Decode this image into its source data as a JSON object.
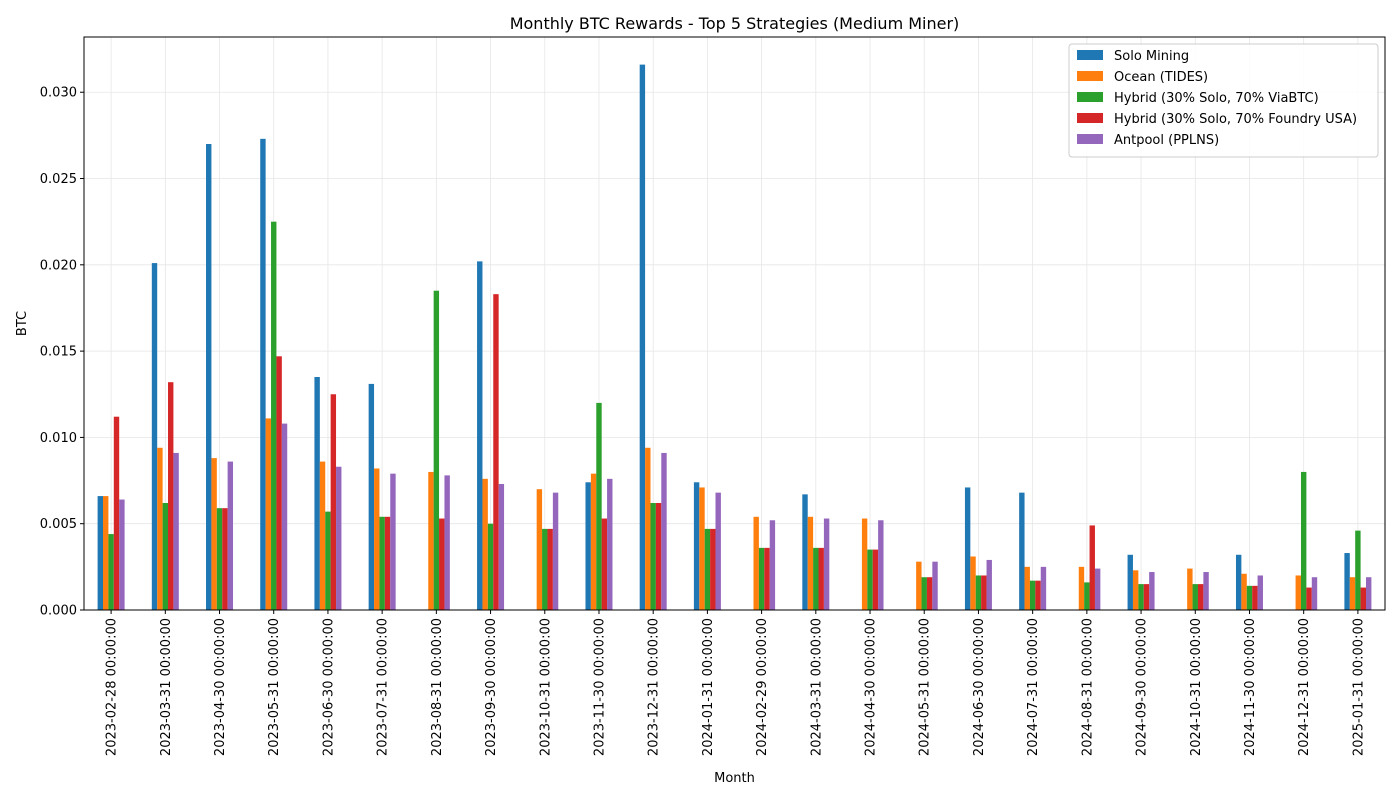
{
  "chart_data": {
    "type": "bar",
    "title": "Monthly BTC Rewards - Top 5 Strategies (Medium Miner)",
    "xlabel": "Month",
    "ylabel": "BTC",
    "ylim": [
      0,
      0.0332
    ],
    "yticks": [
      "0.000",
      "0.005",
      "0.010",
      "0.015",
      "0.020",
      "0.025",
      "0.030"
    ],
    "ytick_values": [
      0,
      0.005,
      0.01,
      0.015,
      0.02,
      0.025,
      0.03
    ],
    "grid": true,
    "legend_position": "top-right",
    "categories": [
      "2023-02-28 00:00:00",
      "2023-03-31 00:00:00",
      "2023-04-30 00:00:00",
      "2023-05-31 00:00:00",
      "2023-06-30 00:00:00",
      "2023-07-31 00:00:00",
      "2023-08-31 00:00:00",
      "2023-09-30 00:00:00",
      "2023-10-31 00:00:00",
      "2023-11-30 00:00:00",
      "2023-12-31 00:00:00",
      "2024-01-31 00:00:00",
      "2024-02-29 00:00:00",
      "2024-03-31 00:00:00",
      "2024-04-30 00:00:00",
      "2024-05-31 00:00:00",
      "2024-06-30 00:00:00",
      "2024-07-31 00:00:00",
      "2024-08-31 00:00:00",
      "2024-09-30 00:00:00",
      "2024-10-31 00:00:00",
      "2024-11-30 00:00:00",
      "2024-12-31 00:00:00",
      "2025-01-31 00:00:00"
    ],
    "series": [
      {
        "name": "Solo Mining",
        "color": "#1f77b4",
        "values": [
          0.0066,
          0.0201,
          0.027,
          0.0273,
          0.0135,
          0.0131,
          0,
          0.0202,
          0,
          0.0074,
          0.0316,
          0.0074,
          0,
          0.0067,
          0,
          0,
          0.0071,
          0.0068,
          0,
          0.0032,
          0,
          0.0032,
          0,
          0.0033
        ]
      },
      {
        "name": "Ocean (TIDES)",
        "color": "#ff7f0e",
        "values": [
          0.0066,
          0.0094,
          0.0088,
          0.0111,
          0.0086,
          0.0082,
          0.008,
          0.0076,
          0.007,
          0.0079,
          0.0094,
          0.0071,
          0.0054,
          0.0054,
          0.0053,
          0.0028,
          0.0031,
          0.0025,
          0.0025,
          0.0023,
          0.0024,
          0.0021,
          0.002,
          0.0019
        ]
      },
      {
        "name": "Hybrid (30% Solo, 70% ViaBTC)",
        "color": "#2ca02c",
        "values": [
          0.0044,
          0.0062,
          0.0059,
          0.0225,
          0.0057,
          0.0054,
          0.0185,
          0.005,
          0.0047,
          0.012,
          0.0062,
          0.0047,
          0.0036,
          0.0036,
          0.0035,
          0.0019,
          0.002,
          0.0017,
          0.0016,
          0.0015,
          0.0015,
          0.0014,
          0.008,
          0.0046
        ]
      },
      {
        "name": "Hybrid (30% Solo, 70% Foundry USA)",
        "color": "#d62728",
        "values": [
          0.0112,
          0.0132,
          0.0059,
          0.0147,
          0.0125,
          0.0054,
          0.0053,
          0.0183,
          0.0047,
          0.0053,
          0.0062,
          0.0047,
          0.0036,
          0.0036,
          0.0035,
          0.0019,
          0.002,
          0.0017,
          0.0049,
          0.0015,
          0.0015,
          0.0014,
          0.0013,
          0.0013
        ]
      },
      {
        "name": "Antpool (PPLNS)",
        "color": "#9467bd",
        "values": [
          0.0064,
          0.0091,
          0.0086,
          0.0108,
          0.0083,
          0.0079,
          0.0078,
          0.0073,
          0.0068,
          0.0076,
          0.0091,
          0.0068,
          0.0052,
          0.0053,
          0.0052,
          0.0028,
          0.0029,
          0.0025,
          0.0024,
          0.0022,
          0.0022,
          0.002,
          0.0019,
          0.0019
        ]
      }
    ]
  }
}
